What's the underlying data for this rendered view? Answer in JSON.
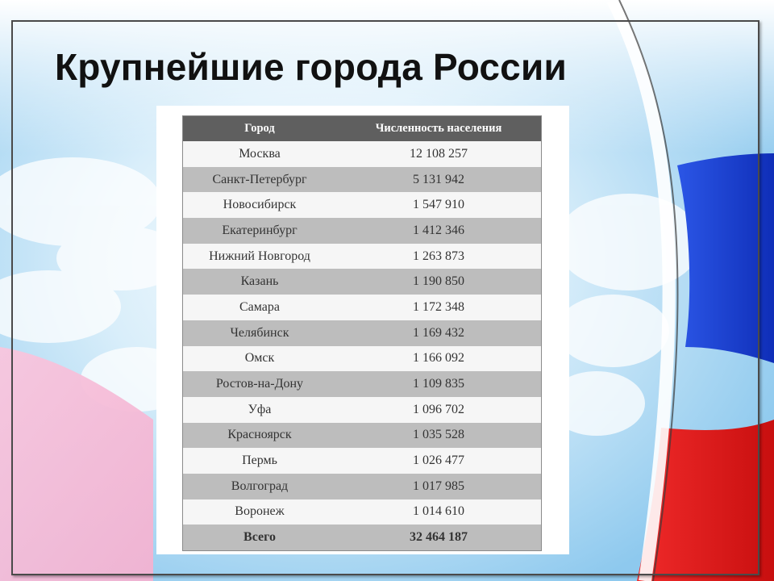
{
  "slide": {
    "title": "Крупнейшие города России"
  },
  "colors": {
    "sky": "#bfe2f6",
    "flag_white": "#ffffff",
    "flag_blue": "#1a3fd2",
    "flag_red": "#e21a1a",
    "pink": "#f6c3dc",
    "header_bg": "#5f5f5f",
    "row_even_bg": "#bdbdbd",
    "row_odd_bg": "#f6f6f6"
  },
  "table": {
    "headers": [
      "Город",
      "Численность населения"
    ],
    "rows": [
      {
        "city": "Москва",
        "population": "12 108 257"
      },
      {
        "city": "Санкт-Петербург",
        "population": "5 131 942"
      },
      {
        "city": "Новосибирск",
        "population": "1 547 910"
      },
      {
        "city": "Екатеринбург",
        "population": "1 412 346"
      },
      {
        "city": "Нижний Новгород",
        "population": "1 263 873"
      },
      {
        "city": "Казань",
        "population": "1 190 850"
      },
      {
        "city": "Самара",
        "population": "1 172 348"
      },
      {
        "city": "Челябинск",
        "population": "1 169 432"
      },
      {
        "city": "Омск",
        "population": "1 166 092"
      },
      {
        "city": "Ростов-на-Дону",
        "population": "1 109 835"
      },
      {
        "city": "Уфа",
        "population": "1 096 702"
      },
      {
        "city": "Красноярск",
        "population": "1 035 528"
      },
      {
        "city": "Пермь",
        "population": "1 026 477"
      },
      {
        "city": "Волгоград",
        "population": "1 017 985"
      },
      {
        "city": "Воронеж",
        "population": "1 014 610"
      }
    ],
    "total": {
      "label": "Всего",
      "value": "32 464 187"
    }
  }
}
